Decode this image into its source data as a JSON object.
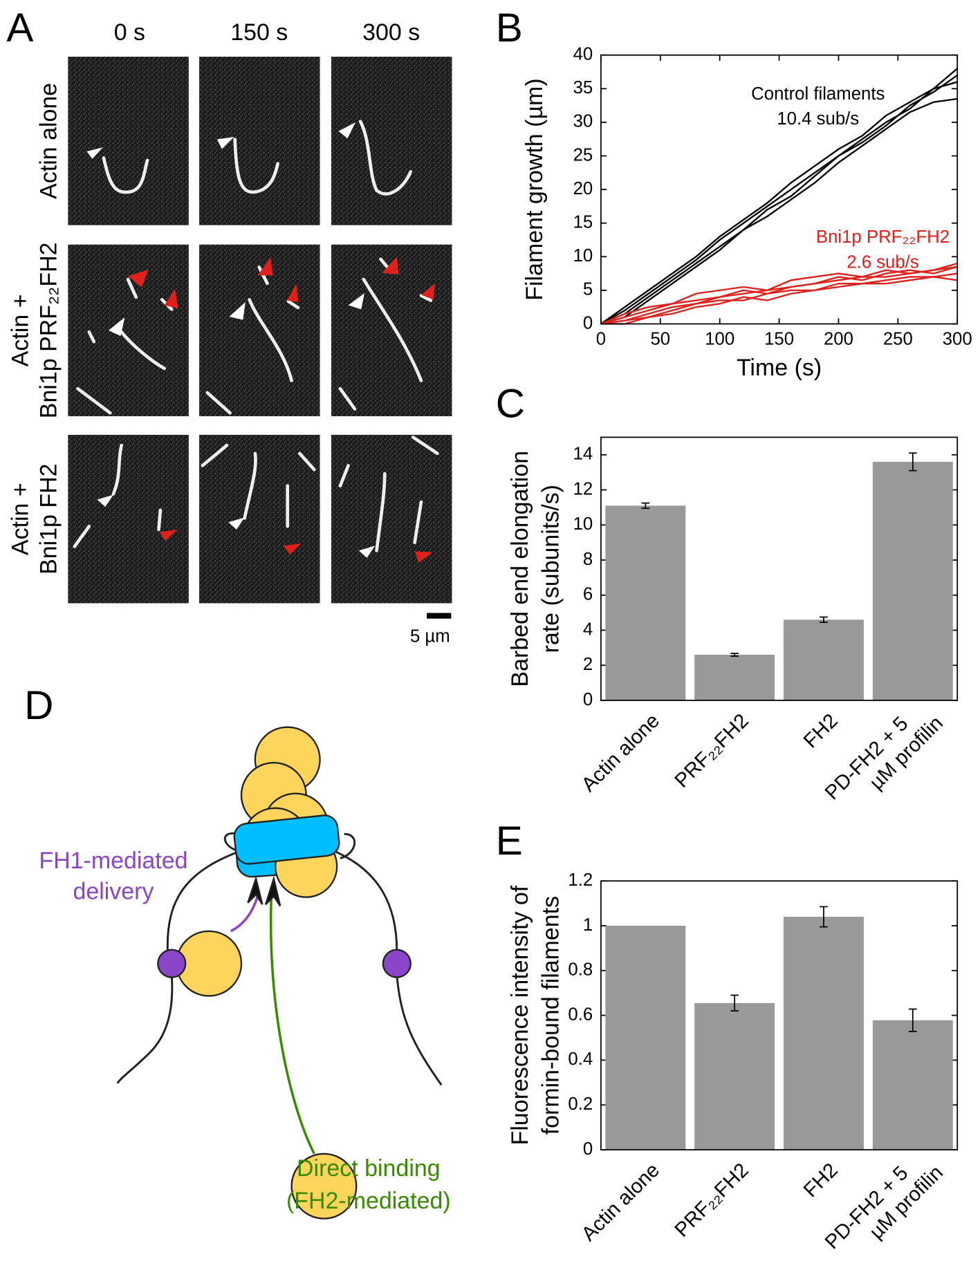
{
  "panel_labels": [
    "A",
    "B",
    "C",
    "D",
    "E"
  ],
  "micrographs": {
    "columns": [
      "0 s",
      "150 s",
      "300 s"
    ],
    "rows": [
      [
        "Actin alone"
      ],
      [
        "Actin +",
        "Bni1p PRF₂₂FH2"
      ],
      [
        "Actin +",
        "Bni1p FH2"
      ]
    ],
    "scale_bar": "5 µm"
  },
  "diagram": {
    "labels": [
      [
        "FH1-mediated",
        "delivery"
      ],
      [
        "Direct binding",
        "(FH2-mediated)"
      ]
    ]
  },
  "chart_data": [
    {
      "type": "line",
      "x_label": "Time (s)",
      "y_label": [
        "Filament growth (µm)"
      ],
      "x": [
        0,
        20,
        40,
        60,
        80,
        100,
        120,
        140,
        160,
        180,
        200,
        220,
        240,
        260,
        280,
        300
      ],
      "xlim": [
        0,
        300
      ],
      "xticks": [
        0,
        50,
        100,
        150,
        200,
        250,
        300
      ],
      "ylim": [
        0,
        40
      ],
      "yticks": [
        0,
        5,
        10,
        15,
        20,
        25,
        30,
        35,
        40
      ],
      "series": [
        {
          "color": "#000000",
          "values": [
            0,
            2,
            4.5,
            7,
            9.5,
            12.5,
            15,
            17.5,
            20,
            22.5,
            25,
            27.5,
            30,
            32,
            35,
            38
          ]
        },
        {
          "color": "#000000",
          "values": [
            0,
            1.5,
            4,
            6.5,
            9,
            11.5,
            14,
            17,
            19,
            22,
            25,
            27,
            29.5,
            32.5,
            34.5,
            37
          ]
        },
        {
          "color": "#000000",
          "values": [
            0,
            2.5,
            5,
            7.5,
            10,
            13,
            15.5,
            18,
            21,
            23.5,
            26,
            28,
            31,
            33,
            35,
            36
          ]
        },
        {
          "color": "#000000",
          "values": [
            0,
            1,
            3.5,
            6,
            8.5,
            11,
            14,
            16,
            18.5,
            21,
            24,
            26.5,
            29,
            31.5,
            33,
            33.5
          ]
        },
        {
          "color": "#e0201b",
          "values": [
            0,
            0.5,
            1.5,
            2.5,
            3,
            4,
            4.5,
            5,
            5.5,
            6,
            6.5,
            7,
            7,
            7.5,
            8,
            9
          ]
        },
        {
          "color": "#e0201b",
          "values": [
            0,
            1,
            2,
            3,
            3.5,
            4,
            5,
            4.5,
            5.5,
            6,
            7,
            6.5,
            7.5,
            8,
            7.5,
            8.5
          ]
        },
        {
          "color": "#e0201b",
          "values": [
            0,
            0.5,
            1,
            2,
            3,
            3.5,
            3.5,
            4.5,
            5,
            5,
            6,
            6,
            6.5,
            7,
            7,
            7.5
          ]
        },
        {
          "color": "#e0201b",
          "values": [
            0,
            1.5,
            2.5,
            3,
            4.5,
            5,
            5.5,
            5,
            6.5,
            7,
            7.5,
            7,
            8,
            7.5,
            8,
            8.5
          ]
        },
        {
          "color": "#e0201b",
          "values": [
            0,
            0,
            1,
            1.5,
            2.5,
            3,
            4,
            3.5,
            4.5,
            5,
            5.5,
            6,
            6,
            6.5,
            7,
            6.5
          ]
        }
      ],
      "annotations": [
        {
          "lines": [
            "Control filaments",
            "10.4 sub/s"
          ],
          "color": "#000000"
        },
        {
          "lines": [
            "Bni1p PRF₂₂FH2",
            "2.6 sub/s"
          ],
          "color": "#e0201b"
        }
      ]
    },
    {
      "type": "bar",
      "y_label": [
        "Barbed end elongation",
        "rate (subunits/s)"
      ],
      "categories": [
        "Actin alone",
        "PRF₂₂FH2",
        "FH2",
        "PD-FH2 + 5 µM profilin"
      ],
      "values": [
        11.1,
        2.6,
        4.6,
        13.6
      ],
      "errors": [
        0.15,
        0.08,
        0.15,
        0.5
      ],
      "color": "#999999",
      "ylim": [
        0,
        15
      ],
      "yticks": [
        0,
        2,
        4,
        6,
        8,
        10,
        12,
        14
      ]
    },
    {
      "type": "bar",
      "y_label": [
        "Fluorescence intensity of",
        "formin-bound filaments"
      ],
      "categories": [
        "Actin alone",
        "PRF₂₂FH2",
        "FH2",
        "PD-FH2 + 5 µM profilin"
      ],
      "values": [
        1.0,
        0.655,
        1.04,
        0.578
      ],
      "errors": [
        0,
        0.035,
        0.045,
        0.05
      ],
      "color": "#999999",
      "ylim": [
        0,
        1.2
      ],
      "yticks": [
        0,
        0.2,
        0.4,
        0.6,
        0.8,
        1,
        1.2
      ]
    }
  ]
}
